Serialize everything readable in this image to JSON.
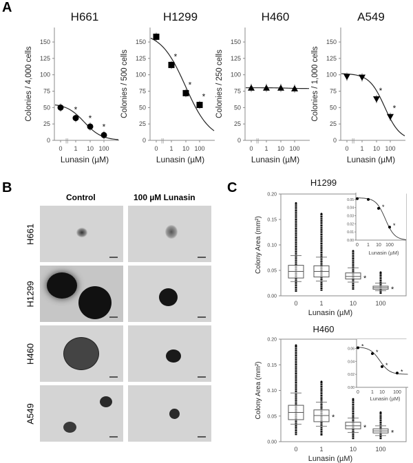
{
  "panel_labels": {
    "a": "A",
    "b": "B",
    "c": "C"
  },
  "chart_data": [
    {
      "type": "scatter",
      "panel": "A",
      "title": "H661",
      "ylabel": "Colonies / 4,000 cells",
      "xlabel": "Lunasin (µM)",
      "categories": [
        "0",
        "1",
        "10",
        "100"
      ],
      "values": [
        50,
        34,
        21,
        8
      ],
      "significant": [
        false,
        true,
        true,
        true
      ],
      "ylim": [
        0,
        175
      ],
      "yticks": [
        "0",
        "25",
        "50",
        "75",
        "100",
        "125",
        "150"
      ],
      "marker": "circle",
      "fit_curve": true
    },
    {
      "type": "scatter",
      "panel": "A",
      "title": "H1299",
      "ylabel": "Colonies / 500 cells",
      "xlabel": "Lunasin (µM)",
      "categories": [
        "0",
        "1",
        "10",
        "100"
      ],
      "values": [
        158,
        115,
        72,
        54
      ],
      "significant": [
        false,
        true,
        true,
        true
      ],
      "ylim": [
        0,
        175
      ],
      "yticks": [
        "0",
        "25",
        "50",
        "75",
        "100",
        "125",
        "150"
      ],
      "marker": "square",
      "fit_curve": true
    },
    {
      "type": "scatter",
      "panel": "A",
      "title": "H460",
      "ylabel": "Colonies / 250 cells",
      "xlabel": "Lunasin (µM)",
      "categories": [
        "0",
        "1",
        "10",
        "100"
      ],
      "values": [
        80,
        80,
        80,
        79
      ],
      "significant": [
        false,
        false,
        false,
        false
      ],
      "ylim": [
        0,
        175
      ],
      "yticks": [
        "0",
        "25",
        "50",
        "75",
        "100",
        "125",
        "150"
      ],
      "marker": "triangle-up",
      "fit_curve": true
    },
    {
      "type": "scatter",
      "panel": "A",
      "title": "A549",
      "ylabel": "Colonies / 1,000 cells",
      "xlabel": "Lunasin (µM)",
      "categories": [
        "0",
        "1",
        "10",
        "100"
      ],
      "values": [
        97,
        96,
        63,
        36
      ],
      "significant": [
        false,
        false,
        true,
        true
      ],
      "ylim": [
        0,
        175
      ],
      "yticks": [
        "0",
        "25",
        "50",
        "75",
        "100",
        "125",
        "150"
      ],
      "marker": "triangle-down",
      "fit_curve": true
    },
    {
      "type": "box",
      "panel": "C",
      "title": "H1299",
      "ylabel": "Colony Area (mm²)",
      "xlabel": "Lunasin (µM)",
      "categories": [
        "0",
        "1",
        "10",
        "100"
      ],
      "ylim": [
        0,
        0.2
      ],
      "yticks": [
        "0.00",
        "0.05",
        "0.10",
        "0.15",
        "0.20"
      ],
      "boxes": [
        {
          "min": 0.008,
          "whisker_low": 0.028,
          "q1": 0.035,
          "median": 0.048,
          "q3": 0.06,
          "whisker_high": 0.079,
          "max": 0.182,
          "significant": false
        },
        {
          "min": 0.01,
          "whisker_low": 0.029,
          "q1": 0.037,
          "median": 0.048,
          "q3": 0.059,
          "whisker_high": 0.076,
          "max": 0.161,
          "significant": false
        },
        {
          "min": 0.012,
          "whisker_low": 0.027,
          "q1": 0.033,
          "median": 0.038,
          "q3": 0.045,
          "whisker_high": 0.055,
          "max": 0.088,
          "significant": true
        },
        {
          "min": 0.004,
          "whisker_low": 0.01,
          "q1": 0.013,
          "median": 0.016,
          "q3": 0.019,
          "whisker_high": 0.025,
          "max": 0.046,
          "significant": true
        }
      ],
      "inset": {
        "type": "line",
        "xlabel": "Lunasin (µM)",
        "categories": [
          "0",
          "1",
          "10",
          "100"
        ],
        "values": [
          0.051,
          0.05,
          0.039,
          0.016
        ],
        "significant": [
          false,
          false,
          true,
          true
        ],
        "ylim": [
          0,
          0.055
        ],
        "yticks": [
          "0.00",
          "0.01",
          "0.02",
          "0.03",
          "0.04",
          "0.05"
        ]
      }
    },
    {
      "type": "box",
      "panel": "C",
      "title": "H460",
      "ylabel": "Colony Area (mm²)",
      "xlabel": "Lunasin (µM)",
      "categories": [
        "0",
        "1",
        "10",
        "100"
      ],
      "ylim": [
        0,
        0.2
      ],
      "yticks": [
        "0.00",
        "0.05",
        "0.10",
        "0.15",
        "0.20"
      ],
      "boxes": [
        {
          "min": 0.013,
          "whisker_low": 0.034,
          "q1": 0.043,
          "median": 0.057,
          "q3": 0.071,
          "whisker_high": 0.095,
          "max": 0.188,
          "significant": false
        },
        {
          "min": 0.012,
          "whisker_low": 0.03,
          "q1": 0.039,
          "median": 0.051,
          "q3": 0.062,
          "whisker_high": 0.077,
          "max": 0.117,
          "significant": true
        },
        {
          "min": 0.005,
          "whisker_low": 0.018,
          "q1": 0.025,
          "median": 0.031,
          "q3": 0.038,
          "whisker_high": 0.046,
          "max": 0.083,
          "significant": true
        },
        {
          "min": 0.005,
          "whisker_low": 0.012,
          "q1": 0.017,
          "median": 0.021,
          "q3": 0.025,
          "whisker_high": 0.031,
          "max": 0.057,
          "significant": true
        }
      ],
      "inset": {
        "type": "line",
        "xlabel": "Lunasin (µM)",
        "categories": [
          "0",
          "1",
          "10",
          "100"
        ],
        "values": [
          0.061,
          0.052,
          0.032,
          0.022
        ],
        "significant": [
          true,
          true,
          true,
          true
        ],
        "ylim": [
          0,
          0.07
        ],
        "yticks": [
          "0.00",
          "0.02",
          "0.04",
          "0.06"
        ]
      }
    }
  ],
  "panel_b": {
    "columns": [
      "Control",
      "100 µM Lunasin"
    ],
    "rows": [
      "H661",
      "H1299",
      "H460",
      "A549"
    ]
  },
  "colors": {
    "marker": "#000000",
    "axis": "#888888",
    "text": "#333333"
  }
}
